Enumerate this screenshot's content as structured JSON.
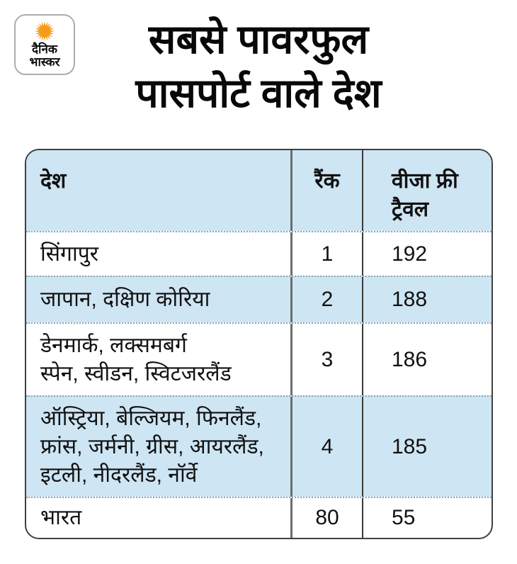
{
  "colors": {
    "table_blue": "#cee5f3",
    "sun_orange": "#f59c1b",
    "border_dark": "#404040"
  },
  "logo": {
    "name": "दैनिक भास्कर",
    "text": "दैनिक\nभास्कर"
  },
  "title": {
    "line1": "सबसे पावरफुल",
    "line2": "पासपोर्ट वाले देश"
  },
  "table": {
    "headers": {
      "country": "देश",
      "rank": "रैंक",
      "visa_free": "वीजा फ्री\nट्रैवल"
    },
    "rows": [
      {
        "country": "सिंगापुर",
        "rank": "1",
        "visa_free": "192"
      },
      {
        "country": "जापान, दक्षिण कोरिया",
        "rank": "2",
        "visa_free": "188"
      },
      {
        "country": "डेनमार्क, लक्समबर्ग\nस्पेन, स्वीडन, स्विटजरलैंड",
        "rank": "3",
        "visa_free": "186"
      },
      {
        "country": "ऑस्ट्रिया, बेल्जियम, फिनलैंड,\nफ्रांस, जर्मनी, ग्रीस, आयरलैंड,\nइटली, नीदरलैंड, नॉर्वे",
        "rank": "4",
        "visa_free": "185"
      },
      {
        "country": "भारत",
        "rank": "80",
        "visa_free": "55"
      }
    ]
  },
  "chart_data": {
    "type": "table",
    "title": "सबसे पावरफुल पासपोर्ट वाले देश",
    "columns": [
      "देश",
      "रैंक",
      "वीजा फ्री ट्रैवल"
    ],
    "rows": [
      [
        "सिंगापुर",
        1,
        192
      ],
      [
        "जापान, दक्षिण कोरिया",
        2,
        188
      ],
      [
        "डेनमार्क, लक्समबर्ग, स्पेन, स्वीडन, स्विटजरलैंड",
        3,
        186
      ],
      [
        "ऑस्ट्रिया, बेल्जियम, फिनलैंड, फ्रांस, जर्मनी, ग्रीस, आयरलैंड, इटली, नीदरलैंड, नॉर्वे",
        4,
        185
      ],
      [
        "भारत",
        80,
        55
      ]
    ],
    "layout": {
      "zebra_stripes": true,
      "stripe_color": "#cee5f3",
      "header_fill": "#cee5f3"
    }
  }
}
